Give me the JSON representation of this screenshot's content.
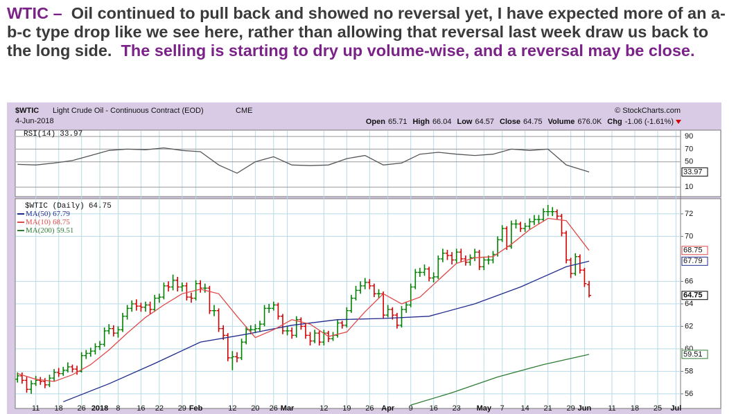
{
  "article": {
    "ticker": "WTIC –",
    "text": "Oil continued to pull back and showed no reversal yet, I have expected more of an a-b-c type drop like we see here, rather than allowing that reversal last week draw us back to the long side.",
    "highlight": "The selling is starting to dry up volume-wise, and a reversal may be close."
  },
  "chart_data": {
    "type": "ohlc",
    "title": "$WTIC",
    "subtitle": "Light Crude Oil - Continuous Contract (EOD)",
    "exchange": "CME",
    "date": "4-Jun-2018",
    "source": "© StockCharts.com",
    "series_name": "$WTIC (Daily)",
    "quote_labels": [
      "Open",
      "High",
      "Low",
      "Close",
      "Volume",
      "Chg"
    ],
    "volume_label": "676.0K",
    "change_label": "-1.06 (-1.61%)",
    "up_color": "#008000",
    "down_color": "#d00000",
    "grid": true,
    "xlim": [
      -0.5,
      145
    ],
    "xticks": [
      {
        "value": 4,
        "label": "11"
      },
      {
        "value": 9,
        "label": "18"
      },
      {
        "value": 14,
        "label": "26"
      },
      {
        "value": 18,
        "label": "2018"
      },
      {
        "value": 22,
        "label": "8"
      },
      {
        "value": 27,
        "label": "16"
      },
      {
        "value": 31,
        "label": "22"
      },
      {
        "value": 36,
        "label": "29"
      },
      {
        "value": 39,
        "label": "Feb"
      },
      {
        "value": 47,
        "label": "12"
      },
      {
        "value": 52,
        "label": "20"
      },
      {
        "value": 56,
        "label": "26"
      },
      {
        "value": 59,
        "label": "Mar"
      },
      {
        "value": 67,
        "label": "12"
      },
      {
        "value": 72,
        "label": "19"
      },
      {
        "value": 77,
        "label": "26"
      },
      {
        "value": 81,
        "label": "Apr"
      },
      {
        "value": 86,
        "label": "9"
      },
      {
        "value": 91,
        "label": "16"
      },
      {
        "value": 96,
        "label": "23"
      },
      {
        "value": 102,
        "label": "May"
      },
      {
        "value": 106,
        "label": "7"
      },
      {
        "value": 111,
        "label": "14"
      },
      {
        "value": 116,
        "label": "21"
      },
      {
        "value": 121,
        "label": "29"
      },
      {
        "value": 124,
        "label": "Jun"
      },
      {
        "value": 130,
        "label": "11"
      },
      {
        "value": 135,
        "label": "18"
      },
      {
        "value": 140,
        "label": "25"
      },
      {
        "value": 144,
        "label": "Jul"
      }
    ],
    "ylim": [
      54.7,
      73.35
    ],
    "yticks": [
      56,
      58,
      60,
      62,
      64,
      66,
      70,
      72
    ],
    "open": [
      57.3,
      57.6,
      57.2,
      56.4,
      56.9,
      57.2,
      57.1,
      56.8,
      57.4,
      57.9,
      57.8,
      58.1,
      58.4,
      58.2,
      58.0,
      59.4,
      59.6,
      59.8,
      60.2,
      60.4,
      61.6,
      61.8,
      61.4,
      61.7,
      62.9,
      63.6,
      64.0,
      63.8,
      63.7,
      63.9,
      63.5,
      64.5,
      64.6,
      65.6,
      65.5,
      66.1,
      65.5,
      65.6,
      64.6,
      64.5,
      65.8,
      65.4,
      65.4,
      63.4,
      63.4,
      61.8,
      61.2,
      59.2,
      59.3,
      59.2,
      60.6,
      61.7,
      61.7,
      61.8,
      62.2,
      63.6,
      63.6,
      63.9,
      62.9,
      61.6,
      61.6,
      61.2,
      62.6,
      62.0,
      61.2,
      60.7,
      61.4,
      60.6,
      61.4,
      60.9,
      61.2,
      62.3,
      62.1,
      63.4,
      64.5,
      65.2,
      65.6,
      65.9,
      65.6,
      64.9,
      64.9,
      63.0,
      63.5,
      63.0,
      62.1,
      63.5,
      63.9,
      65.5,
      66.8,
      66.8,
      67.1,
      66.3,
      66.4,
      68.0,
      68.5,
      68.3,
      67.9,
      68.6,
      68.0,
      67.7,
      68.1,
      68.6,
      67.3,
      67.9,
      67.9,
      68.4,
      69.7,
      70.7,
      69.1,
      71.1,
      71.1,
      70.7,
      70.9,
      71.3,
      71.5,
      71.5,
      72.2,
      72.2,
      72.2,
      71.8,
      70.3,
      67.9,
      66.7,
      68.2,
      67.0,
      65.71
    ],
    "high": [
      57.9,
      57.9,
      57.5,
      57.2,
      57.6,
      57.5,
      57.4,
      57.7,
      58.2,
      58.3,
      58.4,
      58.8,
      58.6,
      58.5,
      59.7,
      59.9,
      60.1,
      60.5,
      60.7,
      61.9,
      62.2,
      62.1,
      62.0,
      63.2,
      63.9,
      64.3,
      64.4,
      64.1,
      64.2,
      64.2,
      64.8,
      64.9,
      65.9,
      66.0,
      66.6,
      66.4,
      65.9,
      65.9,
      65.0,
      66.1,
      66.1,
      65.8,
      65.6,
      63.9,
      63.6,
      62.1,
      61.4,
      59.8,
      59.7,
      60.9,
      62.0,
      62.1,
      62.2,
      62.5,
      63.9,
      64.0,
      64.2,
      64.1,
      63.1,
      62.0,
      61.9,
      62.9,
      62.8,
      62.3,
      61.5,
      61.7,
      61.6,
      61.7,
      61.6,
      61.5,
      62.6,
      62.5,
      63.7,
      64.8,
      65.6,
      66.0,
      66.3,
      66.2,
      65.8,
      65.3,
      65.1,
      63.9,
      63.7,
      63.2,
      63.8,
      64.2,
      65.8,
      67.1,
      67.2,
      67.5,
      67.3,
      66.8,
      68.3,
      68.9,
      68.8,
      68.6,
      68.9,
      68.9,
      68.3,
      68.4,
      68.9,
      68.8,
      68.2,
      68.3,
      68.7,
      70.0,
      71.0,
      70.9,
      71.4,
      71.5,
      71.3,
      71.2,
      71.6,
      71.9,
      71.9,
      72.5,
      72.8,
      72.6,
      72.4,
      72.0,
      70.5,
      68.1,
      68.5,
      68.4,
      67.2,
      66.04
    ],
    "low": [
      57.0,
      56.9,
      56.1,
      56.0,
      56.7,
      56.8,
      56.5,
      56.6,
      57.1,
      57.5,
      57.6,
      57.9,
      57.9,
      57.7,
      57.9,
      59.1,
      59.3,
      59.5,
      59.9,
      60.2,
      61.3,
      61.1,
      61.0,
      61.5,
      62.6,
      63.3,
      63.4,
      63.3,
      63.3,
      63.1,
      63.3,
      64.1,
      64.4,
      65.1,
      65.2,
      65.1,
      65.1,
      64.3,
      64.1,
      64.3,
      65.0,
      65.0,
      63.1,
      62.9,
      61.5,
      60.8,
      58.9,
      58.1,
      58.8,
      59.0,
      60.4,
      61.3,
      61.4,
      61.5,
      62.0,
      63.2,
      63.4,
      62.6,
      61.3,
      61.2,
      60.9,
      61.0,
      61.7,
      60.9,
      60.3,
      60.5,
      60.3,
      60.3,
      60.6,
      60.7,
      61.0,
      61.8,
      61.9,
      63.2,
      64.3,
      64.9,
      65.3,
      65.3,
      64.6,
      64.5,
      62.7,
      62.8,
      62.6,
      61.8,
      61.9,
      63.2,
      63.7,
      65.3,
      66.4,
      66.5,
      66.0,
      65.9,
      66.2,
      67.7,
      67.9,
      67.5,
      67.6,
      67.7,
      67.4,
      67.4,
      67.8,
      67.0,
      67.0,
      67.5,
      67.6,
      68.2,
      69.5,
      68.8,
      68.9,
      70.7,
      70.4,
      70.4,
      70.6,
      71.0,
      71.1,
      71.3,
      71.8,
      71.8,
      71.5,
      70.0,
      67.6,
      66.3,
      66.5,
      66.7,
      65.5,
      64.57
    ],
    "close": [
      57.6,
      57.2,
      56.4,
      56.9,
      57.2,
      57.1,
      56.8,
      57.4,
      57.9,
      57.8,
      58.1,
      58.4,
      58.2,
      58.0,
      59.4,
      59.6,
      59.8,
      60.2,
      60.4,
      61.6,
      61.8,
      61.4,
      61.7,
      62.9,
      63.6,
      64.0,
      63.8,
      63.7,
      63.9,
      63.5,
      64.5,
      64.6,
      65.6,
      65.5,
      66.1,
      65.5,
      65.6,
      64.6,
      64.5,
      65.8,
      65.4,
      65.4,
      63.4,
      63.4,
      61.8,
      61.2,
      59.2,
      59.3,
      59.2,
      60.6,
      61.7,
      61.7,
      61.8,
      62.2,
      63.6,
      63.6,
      63.9,
      62.9,
      61.6,
      61.6,
      61.2,
      62.6,
      62.0,
      61.2,
      60.7,
      61.4,
      60.6,
      61.4,
      60.9,
      61.2,
      62.3,
      62.1,
      63.4,
      64.5,
      65.2,
      65.6,
      65.9,
      65.6,
      64.9,
      64.9,
      63.0,
      63.5,
      63.0,
      62.1,
      63.5,
      63.9,
      65.5,
      66.8,
      66.8,
      67.1,
      66.3,
      66.4,
      68.0,
      68.5,
      68.3,
      67.9,
      68.6,
      68.0,
      67.7,
      68.1,
      68.6,
      67.3,
      67.9,
      67.9,
      68.4,
      69.7,
      70.7,
      69.1,
      71.1,
      71.1,
      70.7,
      70.9,
      71.3,
      71.5,
      71.5,
      72.2,
      72.2,
      72.2,
      71.8,
      70.3,
      67.9,
      66.7,
      68.2,
      67.0,
      65.8,
      64.75
    ],
    "ma": [
      {
        "name": "MA(50)",
        "color": "#1f2a8c",
        "x": [
          10,
          20,
          30,
          40,
          50,
          60,
          70,
          80,
          90,
          100,
          110,
          120,
          125
        ],
        "values": [
          55.3,
          56.9,
          58.7,
          60.6,
          61.3,
          62.1,
          62.6,
          62.7,
          62.9,
          64.0,
          65.5,
          67.3,
          67.79
        ]
      },
      {
        "name": "MA(10)",
        "color": "#e04848",
        "x": [
          0,
          4,
          8,
          12,
          16,
          20,
          24,
          28,
          32,
          36,
          40,
          44,
          48,
          52,
          56,
          60,
          64,
          68,
          72,
          76,
          80,
          84,
          88,
          92,
          96,
          100,
          104,
          108,
          112,
          116,
          120,
          125
        ],
        "values": [
          57.8,
          57.3,
          57.1,
          57.7,
          58.6,
          59.9,
          61.4,
          62.8,
          63.9,
          64.9,
          65.3,
          64.9,
          62.9,
          61.0,
          61.7,
          62.6,
          62.2,
          61.1,
          61.5,
          63.3,
          64.9,
          64.0,
          64.6,
          66.1,
          67.6,
          68.1,
          68.2,
          69.3,
          70.6,
          71.6,
          71.4,
          68.75
        ]
      },
      {
        "name": "MA(200)",
        "color": "#2e7d32",
        "x": [
          86,
          95,
          105,
          115,
          125
        ],
        "values": [
          55.0,
          56.1,
          57.5,
          58.6,
          59.51
        ]
      }
    ],
    "rsi": {
      "name": "RSI(14)",
      "color": "#555555",
      "ylim": [
        -5,
        100
      ],
      "yticks": [
        10,
        50,
        70,
        90
      ],
      "x": [
        0,
        4,
        8,
        12,
        16,
        20,
        24,
        28,
        32,
        36,
        40,
        44,
        48,
        52,
        56,
        60,
        64,
        68,
        72,
        76,
        80,
        84,
        88,
        92,
        96,
        100,
        104,
        108,
        112,
        116,
        120,
        125
      ],
      "values": [
        46,
        45,
        48,
        52,
        60,
        68,
        70,
        69,
        72,
        68,
        66,
        45,
        32,
        50,
        58,
        45,
        44,
        45,
        55,
        60,
        45,
        48,
        62,
        65,
        62,
        60,
        62,
        70,
        68,
        70,
        45,
        33.97
      ]
    }
  }
}
